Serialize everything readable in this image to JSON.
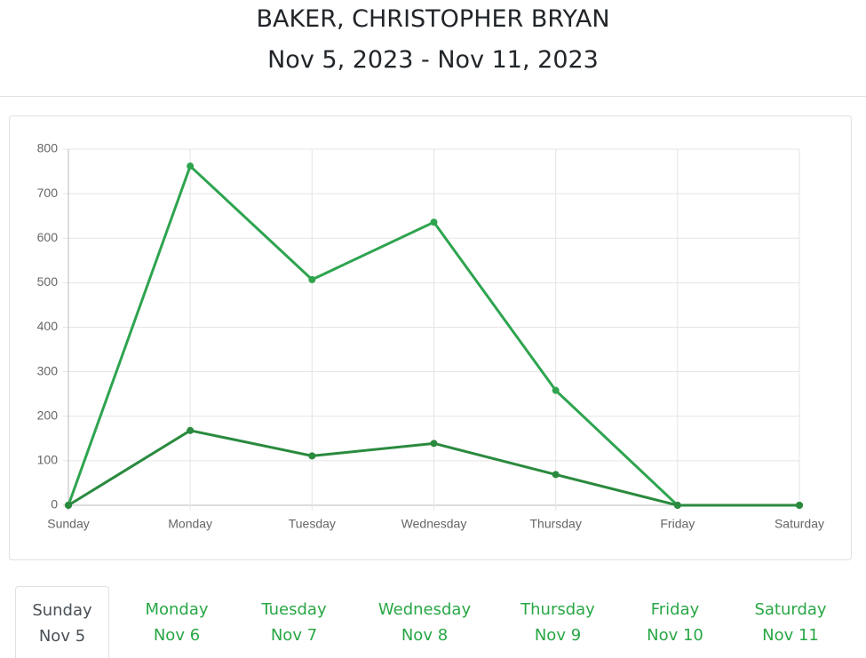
{
  "header": {
    "title": "BAKER, CHRISTOPHER BRYAN",
    "subtitle": "Nov 5, 2023 - Nov 11, 2023"
  },
  "chart_data": {
    "type": "line",
    "categories": [
      "Sunday",
      "Monday",
      "Tuesday",
      "Wednesday",
      "Thursday",
      "Friday",
      "Saturday"
    ],
    "series": [
      {
        "color": "#2ea44f",
        "values": [
          0,
          762,
          507,
          636,
          258,
          0,
          0
        ]
      },
      {
        "color": "#2a8a3e",
        "values": [
          0,
          168,
          111,
          139,
          69,
          0,
          0
        ]
      }
    ],
    "ylim": [
      0,
      800
    ],
    "yticks": [
      0,
      100,
      200,
      300,
      400,
      500,
      600,
      700,
      800
    ],
    "grid": true
  },
  "tabs": {
    "active": 0,
    "items": [
      {
        "day": "Sunday",
        "date": "Nov 5"
      },
      {
        "day": "Monday",
        "date": "Nov 6"
      },
      {
        "day": "Tuesday",
        "date": "Nov 7"
      },
      {
        "day": "Wednesday",
        "date": "Nov 8"
      },
      {
        "day": "Thursday",
        "date": "Nov 9"
      },
      {
        "day": "Friday",
        "date": "Nov 10"
      },
      {
        "day": "Saturday",
        "date": "Nov 11"
      }
    ]
  }
}
